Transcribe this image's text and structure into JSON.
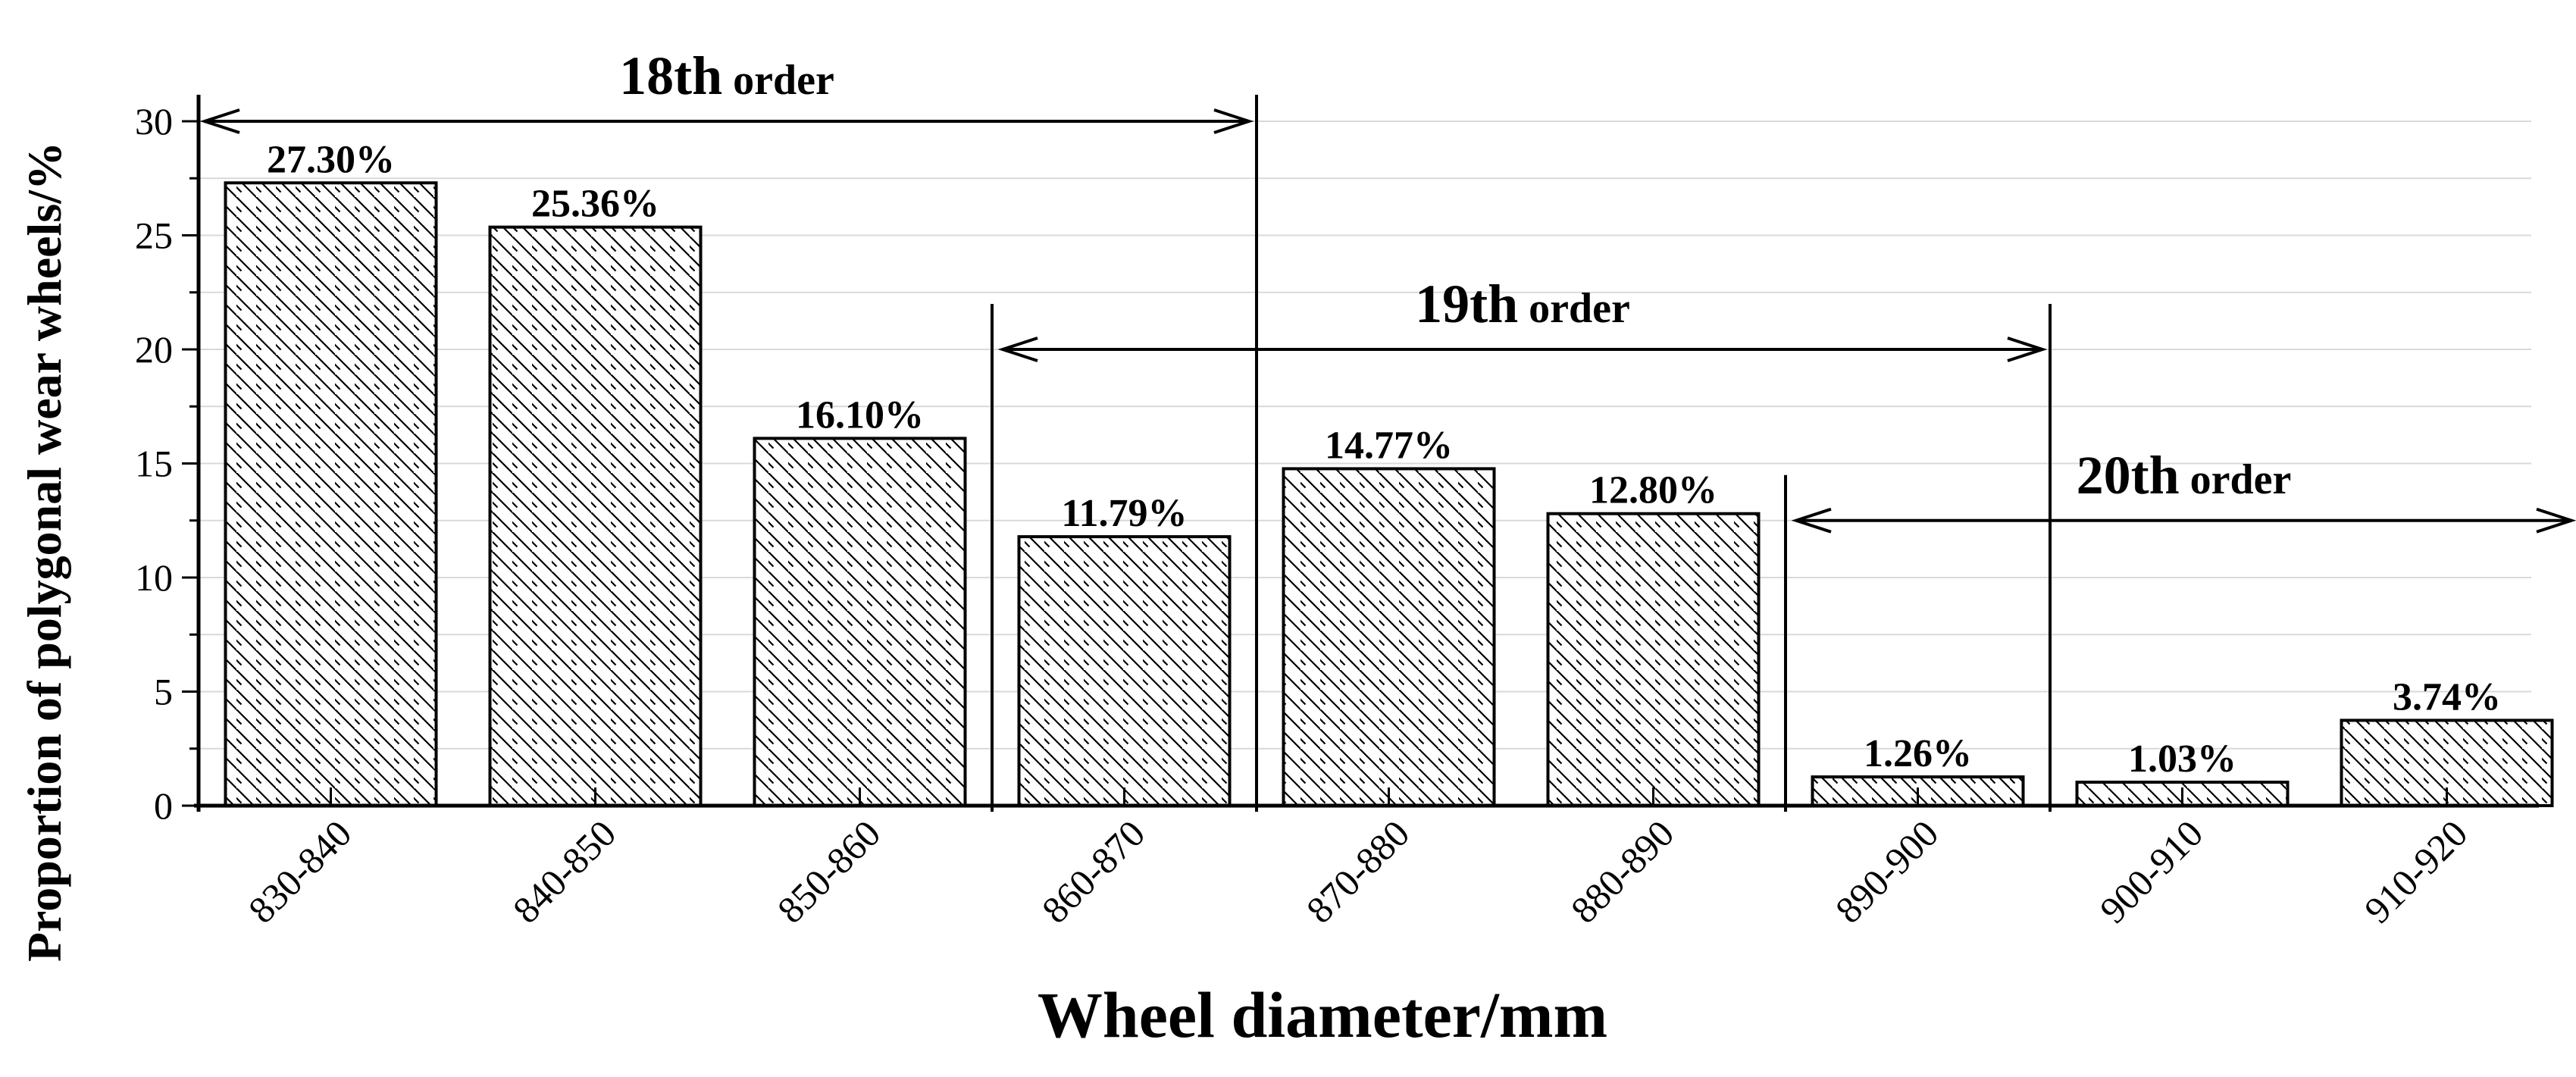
{
  "chart_data": {
    "type": "bar",
    "categories": [
      "830-840",
      "840-850",
      "850-860",
      "860-870",
      "870-880",
      "880-890",
      "890-900",
      "900-910",
      "910-920"
    ],
    "values": [
      27.3,
      25.36,
      16.1,
      11.79,
      14.77,
      12.8,
      1.26,
      1.03,
      3.74
    ],
    "value_labels": [
      "27.30%",
      "25.36%",
      "16.10%",
      "11.79%",
      "14.77%",
      "12.80%",
      "1.26%",
      "1.03%",
      "3.74%"
    ],
    "xlabel": "Wheel diameter/mm",
    "ylabel": "Proportion of polygonal wear wheels/%",
    "ylim": [
      0,
      30
    ],
    "yticks": [
      "0",
      "5",
      "10",
      "15",
      "20",
      "25",
      "30"
    ],
    "grid": true,
    "bar_pattern": "diagonal-hatch",
    "orders": [
      {
        "prefix": "18",
        "suffix": "th",
        "rest": " order",
        "from_boundary": 0,
        "to_boundary": 4,
        "level": 30
      },
      {
        "prefix": "19",
        "suffix": "th",
        "rest": " order",
        "from_boundary": 3,
        "to_boundary": 7,
        "level": 20
      },
      {
        "prefix": "20",
        "suffix": "th",
        "rest": " order",
        "from_boundary": 6,
        "to_boundary": 9,
        "level": 12.5
      }
    ]
  },
  "colors": {
    "bar_fill": "#ffffff",
    "hatch": "#000000",
    "grid": "#d9d9d9",
    "axis": "#000000"
  }
}
